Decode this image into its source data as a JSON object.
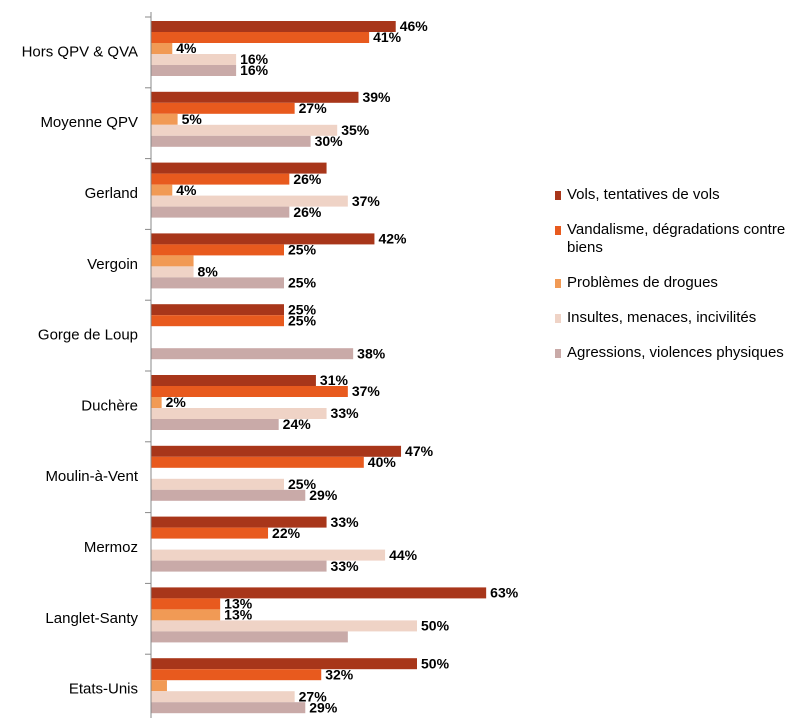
{
  "chart_data": {
    "type": "hbar",
    "categories": [
      "Hors QPV & QVA",
      "Moyenne QPV",
      "Gerland",
      "Vergoin",
      "Gorge de Loup",
      "Duchère",
      "Moulin-à-Vent",
      "Mermoz",
      "Langlet-Santy",
      "Etats-Unis"
    ],
    "xlim": [
      0,
      100
    ],
    "series": [
      {
        "name": "Vols, tentatives de vols",
        "color": "#a8361a",
        "values": [
          46,
          39,
          33,
          42,
          25,
          31,
          47,
          33,
          63,
          50
        ],
        "value_labels": [
          "46%",
          "39%",
          null,
          "42%",
          "25%",
          "31%",
          "47%",
          "33%",
          "63%",
          "50%"
        ]
      },
      {
        "name": "Vandalisme, dégradations contre biens",
        "color": "#e85a1e",
        "values": [
          41,
          27,
          26,
          25,
          25,
          37,
          40,
          22,
          13,
          32
        ],
        "value_labels": [
          "41%",
          "27%",
          "26%",
          "25%",
          "25%",
          "37%",
          "40%",
          "22%",
          "13%",
          "32%"
        ]
      },
      {
        "name": "Problèmes de drogues",
        "color": "#f19a55",
        "values": [
          4,
          5,
          4,
          8,
          null,
          2,
          null,
          null,
          13,
          3
        ],
        "value_labels": [
          "4%",
          "5%",
          "4%",
          null,
          null,
          "2%",
          null,
          null,
          "13%",
          null
        ]
      },
      {
        "name": "Insultes, menaces, incivilités",
        "color": "#efd3c6",
        "values": [
          16,
          35,
          37,
          8,
          null,
          33,
          25,
          44,
          50,
          27
        ],
        "value_labels": [
          "16%",
          "35%",
          "37%",
          "8%",
          null,
          "33%",
          "25%",
          "44%",
          "50%",
          "27%"
        ]
      },
      {
        "name": "Agressions, violences physiques",
        "color": "#c9aaa8",
        "values": [
          16,
          30,
          26,
          25,
          38,
          24,
          29,
          33,
          37,
          29
        ],
        "value_labels": [
          "16%",
          "30%",
          "26%",
          "25%",
          "38%",
          "24%",
          "29%",
          "33%",
          null,
          "29%"
        ]
      }
    ]
  }
}
